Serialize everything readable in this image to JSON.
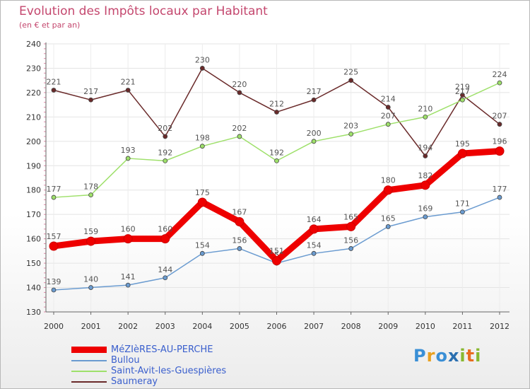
{
  "title": "Evolution des Impôts locaux par Habitant",
  "subtitle": "(en € et par an)",
  "logo": {
    "letters": [
      "P",
      "r",
      "o",
      "x",
      "i",
      "t",
      "i"
    ],
    "colors": [
      "#3a8fd6",
      "#e8a020",
      "#3a8fd6",
      "#2a6fb0",
      "#88b830",
      "#e86c20",
      "#88b830"
    ]
  },
  "chart_data": {
    "type": "line",
    "title": "Evolution des Impôts locaux par Habitant",
    "ylabel": "(en € et par an)",
    "xlabel": "",
    "ylim": [
      130,
      240
    ],
    "yticks": [
      130,
      140,
      150,
      160,
      170,
      180,
      190,
      200,
      210,
      220,
      230,
      240
    ],
    "categories": [
      "2000",
      "2001",
      "2002",
      "2003",
      "2004",
      "2005",
      "2006",
      "2007",
      "2008",
      "2009",
      "2010",
      "2011",
      "2012"
    ],
    "grid": true,
    "series": [
      {
        "name": "MéZIèRES-AU-PERCHE",
        "color": "#ee0000",
        "values": [
          157,
          159,
          160,
          160,
          175,
          167,
          151,
          164,
          165,
          180,
          182,
          195,
          196
        ]
      },
      {
        "name": "Bullou",
        "color": "#6a9bd0",
        "values": [
          139,
          140,
          141,
          144,
          154,
          156,
          150,
          154,
          156,
          165,
          169,
          171,
          177
        ]
      },
      {
        "name": "Saint-Avit-les-Guespières",
        "color": "#9ee06a",
        "values": [
          177,
          178,
          193,
          192,
          198,
          202,
          192,
          200,
          203,
          207,
          210,
          217,
          224
        ]
      },
      {
        "name": "Saumeray",
        "color": "#6a2a2a",
        "values": [
          221,
          217,
          221,
          202,
          230,
          220,
          212,
          217,
          225,
          214,
          194,
          219,
          207
        ]
      }
    ]
  }
}
